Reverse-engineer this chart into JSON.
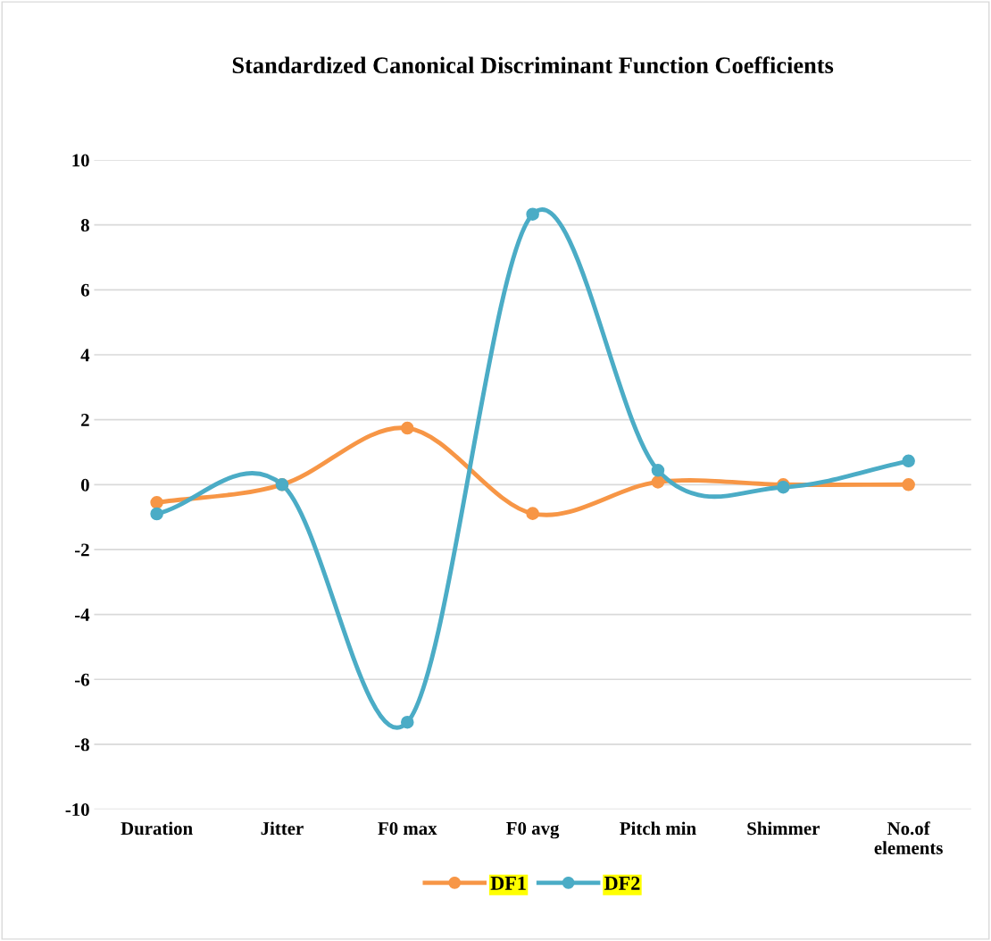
{
  "chart_data": {
    "type": "line",
    "title": "Standardized Canonical Discriminant Function Coefficients",
    "categories": [
      "Duration",
      "Jitter",
      "F0 max",
      "F0 avg",
      "Pitch min",
      "Shimmer",
      "No.of elements"
    ],
    "series": [
      {
        "name": "DF1",
        "color": "#f79646",
        "values": [
          -0.55,
          0.0,
          1.74,
          -0.89,
          0.08,
          0.0,
          0.0
        ]
      },
      {
        "name": "DF2",
        "color": "#4bacc6",
        "values": [
          -0.9,
          0.0,
          -7.32,
          8.33,
          0.44,
          -0.08,
          0.73
        ]
      }
    ],
    "ylim": [
      -10,
      10
    ],
    "yticks": [
      -10,
      -8,
      -6,
      -4,
      -2,
      0,
      2,
      4,
      6,
      8,
      10
    ],
    "grid": "y",
    "legend": "bottom",
    "marker": "circle",
    "line_style": "solid"
  }
}
